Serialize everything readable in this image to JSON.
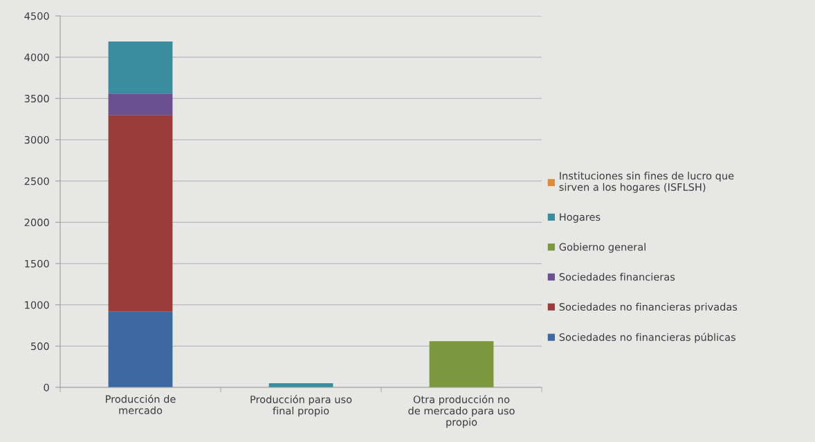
{
  "chart_data": {
    "type": "bar",
    "stacked": true,
    "categories": [
      "Producción de\nmercado",
      "Producción para uso\nfinal propio",
      "Otra producción no\nde mercado para uso\npropio"
    ],
    "series": [
      {
        "name": "Sociedades no financieras públicas",
        "color": "#3d68a0",
        "values": [
          920,
          null,
          null
        ]
      },
      {
        "name": "Sociedades no financieras privadas",
        "color": "#9a3c3b",
        "values": [
          2380,
          null,
          null
        ]
      },
      {
        "name": "Sociedades financieras",
        "color": "#6a5090",
        "values": [
          260,
          null,
          null
        ]
      },
      {
        "name": "Gobierno general",
        "color": "#7b983f",
        "values": [
          null,
          null,
          560
        ]
      },
      {
        "name": "Hogares",
        "color": "#3a8d9f",
        "values": [
          630,
          50,
          null
        ]
      },
      {
        "name": "Instituciones sin fines de lucro que\nsirven a los hogares (ISFLSH)",
        "color": "#e08a3c",
        "values": [
          null,
          null,
          null
        ]
      }
    ],
    "ylim": [
      0,
      4500
    ],
    "yticks": [
      0,
      500,
      1000,
      1500,
      2000,
      2500,
      3000,
      3500,
      4000,
      4500
    ],
    "grid": "y",
    "legend": "right"
  }
}
